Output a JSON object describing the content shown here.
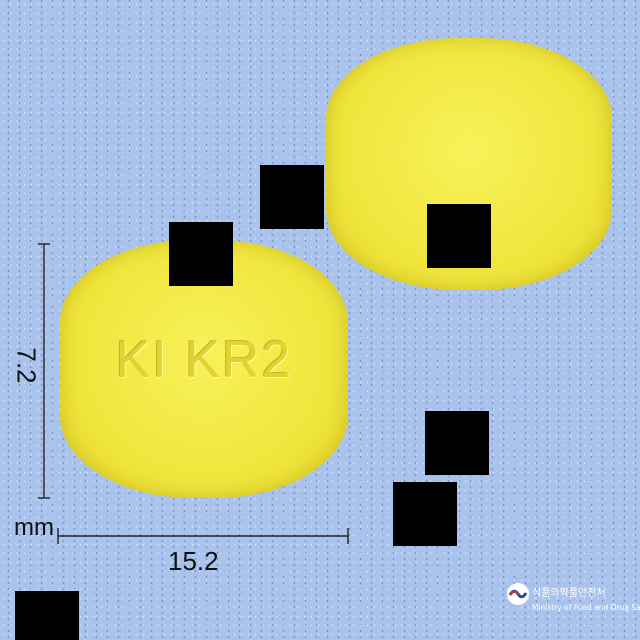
{
  "image": {
    "background_color": "#a9c3ec",
    "pill_color": "#f1e63e",
    "imprint": "KI KR2",
    "dimensions": {
      "width": "15.2",
      "height": "7.2",
      "unit": "mm"
    },
    "organization": {
      "name_ko": "식품의약품안전처",
      "name_en": "Ministry of Food and Drug Safety"
    }
  }
}
